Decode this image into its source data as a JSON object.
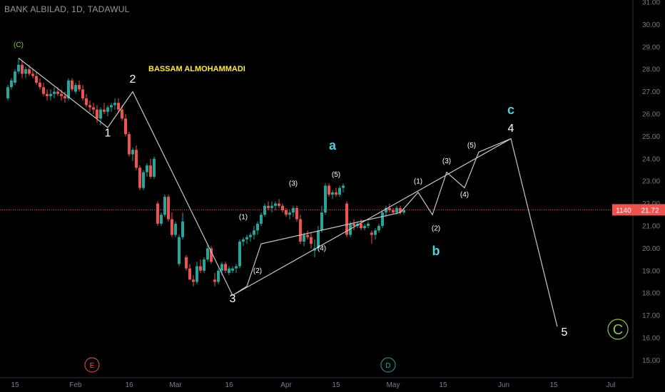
{
  "header": {
    "title": "BANK ALBILAD, 1D, TADAWUL"
  },
  "author": "BASSAM ALMOHAMMADI",
  "colors": {
    "up": "#26a69a",
    "down": "#ef5350",
    "wave_line": "#c7c7c7",
    "teal": "#4dd0e1",
    "green_circle": "#8bc34a",
    "event_e": "#ef5350",
    "event_d": "#26a69a",
    "price_line": "#ef5350"
  },
  "price_tag": {
    "left": "1140",
    "value": "21.72"
  },
  "events": [
    {
      "label": "E"
    },
    {
      "label": "D"
    }
  ],
  "chart_data": {
    "type": "candlestick",
    "title": "BANK ALBILAD, 1D, TADAWUL",
    "ylim": [
      14.6,
      31.0
    ],
    "y_ticks": [
      "15.00",
      "16.00",
      "17.00",
      "18.00",
      "19.00",
      "20.00",
      "21.00",
      "22.00",
      "23.00",
      "24.00",
      "25.00",
      "26.00",
      "27.00",
      "28.00",
      "29.00",
      "30.00",
      "31.00"
    ],
    "x_ticks": [
      {
        "label": "15",
        "day": 0
      },
      {
        "label": "Feb",
        "day": 17
      },
      {
        "label": "16",
        "day": 32
      },
      {
        "label": "Mar",
        "day": 45
      },
      {
        "label": "16",
        "day": 60
      },
      {
        "label": "Apr",
        "day": 76
      },
      {
        "label": "15",
        "day": 90
      },
      {
        "label": "May",
        "day": 106
      },
      {
        "label": "15",
        "day": 120
      },
      {
        "label": "Jun",
        "day": 137
      },
      {
        "label": "15",
        "day": 151
      },
      {
        "label": "Jul",
        "day": 167
      }
    ],
    "current_price": 21.72,
    "candles": [
      [
        -2,
        26.7,
        27.3,
        26.6,
        27.2
      ],
      [
        -1,
        27.2,
        27.6,
        27.1,
        27.5
      ],
      [
        0,
        27.4,
        28.0,
        27.3,
        27.9
      ],
      [
        1,
        27.9,
        28.5,
        27.8,
        28.2
      ],
      [
        2,
        28.2,
        28.4,
        27.6,
        27.8
      ],
      [
        3,
        27.8,
        28.1,
        27.6,
        28.0
      ],
      [
        4,
        28.0,
        28.2,
        27.7,
        27.8
      ],
      [
        5,
        27.8,
        28.0,
        27.6,
        27.7
      ],
      [
        6,
        27.7,
        27.9,
        27.3,
        27.4
      ],
      [
        7,
        27.4,
        27.6,
        27.1,
        27.2
      ],
      [
        8,
        27.2,
        27.4,
        26.8,
        26.9
      ],
      [
        9,
        26.9,
        27.1,
        26.6,
        26.8
      ],
      [
        10,
        26.8,
        27.1,
        26.6,
        26.9
      ],
      [
        11,
        26.9,
        27.2,
        26.7,
        27.0
      ],
      [
        12,
        27.0,
        27.2,
        26.8,
        26.9
      ],
      [
        13,
        26.9,
        27.1,
        26.6,
        26.8
      ],
      [
        14,
        26.8,
        27.0,
        26.5,
        26.7
      ],
      [
        15,
        26.7,
        27.6,
        26.6,
        27.5
      ],
      [
        16,
        27.5,
        27.6,
        27.0,
        27.1
      ],
      [
        17,
        27.0,
        27.4,
        26.9,
        27.3
      ],
      [
        18,
        27.3,
        27.5,
        27.0,
        27.1
      ],
      [
        19,
        27.1,
        27.3,
        26.6,
        26.7
      ],
      [
        20,
        26.7,
        26.9,
        26.3,
        26.4
      ],
      [
        21,
        26.4,
        26.6,
        26.1,
        26.3
      ],
      [
        22,
        26.3,
        26.5,
        26.0,
        26.2
      ],
      [
        23,
        26.2,
        26.4,
        25.6,
        25.8
      ],
      [
        24,
        25.8,
        26.3,
        25.5,
        26.2
      ],
      [
        25,
        26.2,
        26.5,
        26.0,
        26.1
      ],
      [
        26,
        26.1,
        26.4,
        25.9,
        26.3
      ],
      [
        27,
        26.3,
        26.5,
        26.1,
        26.4
      ],
      [
        28,
        26.4,
        26.7,
        26.2,
        26.5
      ],
      [
        29,
        26.5,
        26.7,
        26.1,
        26.2
      ],
      [
        30,
        26.2,
        26.4,
        25.7,
        25.8
      ],
      [
        31,
        25.8,
        26.0,
        25.0,
        25.1
      ],
      [
        32,
        25.1,
        25.2,
        24.1,
        24.2
      ],
      [
        33,
        24.2,
        24.5,
        23.9,
        24.4
      ],
      [
        34,
        24.4,
        24.6,
        23.5,
        23.6
      ],
      [
        35,
        23.6,
        23.7,
        22.6,
        22.7
      ],
      [
        36,
        22.7,
        23.5,
        22.6,
        23.4
      ],
      [
        37,
        23.4,
        23.8,
        23.2,
        23.7
      ],
      [
        38,
        23.7,
        24.0,
        23.1,
        23.2
      ],
      [
        39,
        23.2,
        24.1,
        23.1,
        24.0
      ],
      [
        40,
        22.0,
        22.1,
        21.0,
        21.1
      ],
      [
        41,
        21.1,
        21.6,
        21.0,
        21.5
      ],
      [
        42,
        21.5,
        22.4,
        21.4,
        22.3
      ],
      [
        43,
        22.3,
        22.4,
        21.2,
        21.3
      ],
      [
        44,
        21.3,
        21.6,
        20.5,
        20.6
      ],
      [
        45,
        20.6,
        21.2,
        20.5,
        21.1
      ],
      [
        46,
        19.3,
        20.6,
        19.2,
        20.5
      ],
      [
        47,
        20.5,
        21.6,
        20.4,
        21.2
      ],
      [
        48,
        19.6,
        19.7,
        19.0,
        19.1
      ],
      [
        49,
        19.1,
        19.3,
        18.6,
        18.6
      ],
      [
        50,
        18.6,
        18.8,
        18.3,
        18.5
      ],
      [
        51,
        18.5,
        19.4,
        18.4,
        19.2
      ],
      [
        52,
        19.2,
        19.5,
        18.9,
        19.0
      ],
      [
        53,
        19.0,
        19.6,
        18.9,
        19.5
      ],
      [
        54,
        19.5,
        20.2,
        19.4,
        20.0
      ],
      [
        55,
        20.0,
        20.1,
        19.3,
        19.4
      ],
      [
        56,
        18.6,
        18.9,
        18.3,
        18.5
      ],
      [
        57,
        18.5,
        19.1,
        18.4,
        19.0
      ],
      [
        58,
        19.0,
        19.4,
        18.8,
        19.3
      ],
      [
        59,
        19.3,
        19.4,
        18.9,
        19.0
      ],
      [
        60,
        18.9,
        19.2,
        18.8,
        19.1
      ],
      [
        61,
        19.0,
        19.2,
        18.9,
        19.1
      ],
      [
        62,
        19.1,
        19.3,
        18.9,
        19.2
      ],
      [
        63,
        19.2,
        20.4,
        19.1,
        20.3
      ],
      [
        64,
        20.3,
        20.5,
        20.1,
        20.4
      ],
      [
        65,
        20.4,
        20.6,
        20.2,
        20.5
      ],
      [
        66,
        20.5,
        20.7,
        20.3,
        20.6
      ],
      [
        67,
        20.6,
        21.0,
        20.4,
        20.8
      ],
      [
        68,
        20.8,
        21.2,
        20.6,
        21.1
      ],
      [
        69,
        21.1,
        21.6,
        21.0,
        21.5
      ],
      [
        70,
        21.5,
        22.0,
        21.4,
        21.9
      ],
      [
        71,
        21.9,
        22.1,
        21.7,
        21.8
      ],
      [
        72,
        21.8,
        22.1,
        21.6,
        21.9
      ],
      [
        73,
        21.9,
        22.1,
        21.7,
        22.0
      ],
      [
        74,
        22.0,
        22.2,
        21.8,
        21.9
      ],
      [
        75,
        21.9,
        22.0,
        21.6,
        21.7
      ],
      [
        76,
        21.7,
        21.8,
        21.4,
        21.5
      ],
      [
        77,
        21.5,
        21.7,
        21.3,
        21.6
      ],
      [
        78,
        21.6,
        21.9,
        21.4,
        21.8
      ],
      [
        79,
        21.8,
        21.9,
        21.2,
        21.3
      ],
      [
        80,
        21.3,
        21.5,
        20.2,
        20.3
      ],
      [
        81,
        20.3,
        20.7,
        20.1,
        20.6
      ],
      [
        82,
        20.6,
        20.8,
        20.4,
        20.5
      ],
      [
        83,
        20.5,
        20.7,
        20.0,
        20.2
      ],
      [
        84,
        19.9,
        20.4,
        19.6,
        20.0
      ],
      [
        85,
        20.0,
        21.0,
        19.9,
        20.8
      ],
      [
        86,
        20.8,
        21.9,
        20.7,
        21.6
      ],
      [
        87,
        21.6,
        22.9,
        21.5,
        22.8
      ],
      [
        88,
        22.8,
        22.9,
        22.3,
        22.4
      ],
      [
        89,
        22.4,
        22.6,
        22.2,
        22.5
      ],
      [
        90,
        22.5,
        22.7,
        22.3,
        22.4
      ],
      [
        91,
        22.4,
        22.8,
        22.3,
        22.7
      ],
      [
        92,
        22.7,
        22.9,
        22.5,
        22.8
      ],
      [
        93,
        22.0,
        22.1,
        20.5,
        20.6
      ],
      [
        94,
        20.6,
        21.2,
        20.5,
        21.1
      ],
      [
        95,
        21.1,
        21.3,
        20.8,
        21.0
      ],
      [
        96,
        21.0,
        21.2,
        20.9,
        21.1
      ],
      [
        97,
        21.1,
        21.3,
        20.8,
        20.9
      ],
      [
        98,
        20.9,
        21.1,
        20.8,
        21.0
      ],
      [
        99,
        21.0,
        21.2,
        20.9,
        21.1
      ],
      [
        100,
        20.7,
        20.8,
        20.2,
        20.6
      ],
      [
        101,
        20.6,
        20.9,
        20.4,
        20.8
      ],
      [
        102,
        20.8,
        21.1,
        20.7,
        21.0
      ],
      [
        103,
        21.0,
        21.7,
        20.9,
        21.6
      ],
      [
        104,
        21.6,
        21.9,
        21.4,
        21.8
      ],
      [
        105,
        21.8,
        22.0,
        21.6,
        21.7
      ],
      [
        106,
        21.7,
        21.8,
        21.5,
        21.6
      ],
      [
        107,
        21.6,
        21.9,
        21.5,
        21.8
      ],
      [
        108,
        21.8,
        21.9,
        21.5,
        21.6
      ],
      [
        109,
        21.6,
        21.8,
        21.5,
        21.7
      ]
    ],
    "wave_path": [
      {
        "day": 1,
        "y": 28.5
      },
      {
        "day": 26,
        "y": 25.4
      },
      {
        "day": 33,
        "y": 27.0
      },
      {
        "day": 61,
        "y": 17.9
      },
      {
        "day": 139,
        "y": 24.9
      },
      {
        "day": 152,
        "y": 16.5
      }
    ],
    "wave_path_sub": [
      {
        "day": 61,
        "y": 17.9
      },
      {
        "day": 65,
        "y": 18.3
      },
      {
        "day": 69,
        "y": 20.2
      },
      {
        "day": 108,
        "y": 21.6
      },
      {
        "day": 113,
        "y": 22.5
      },
      {
        "day": 117,
        "y": 21.5
      },
      {
        "day": 121,
        "y": 23.4
      },
      {
        "day": 126,
        "y": 22.7
      },
      {
        "day": 130,
        "y": 24.3
      },
      {
        "day": 139,
        "y": 24.9
      }
    ],
    "wave_labels": [
      {
        "text": "(C)",
        "day": 1,
        "y": 29.0,
        "style": "green-small"
      },
      {
        "text": "2",
        "day": 33,
        "y": 27.4,
        "style": "white-big"
      },
      {
        "text": "1",
        "day": 26,
        "y": 25.0,
        "style": "white-big"
      },
      {
        "text": "3",
        "day": 61,
        "y": 17.6,
        "style": "white-big"
      },
      {
        "text": "4",
        "day": 139,
        "y": 25.2,
        "style": "white-big"
      },
      {
        "text": "5",
        "day": 154,
        "y": 16.1,
        "style": "white-big"
      },
      {
        "text": "a",
        "day": 89,
        "y": 24.4,
        "style": "teal-big"
      },
      {
        "text": "b",
        "day": 118,
        "y": 19.7,
        "style": "teal-big"
      },
      {
        "text": "c",
        "day": 139,
        "y": 26.0,
        "style": "teal-big"
      },
      {
        "text": "(1)",
        "day": 64,
        "y": 21.3,
        "style": "sub"
      },
      {
        "text": "(2)",
        "day": 68,
        "y": 18.9,
        "style": "sub"
      },
      {
        "text": "(3)",
        "day": 78,
        "y": 22.8,
        "style": "sub"
      },
      {
        "text": "(4)",
        "day": 86,
        "y": 19.9,
        "style": "sub"
      },
      {
        "text": "(5)",
        "day": 90,
        "y": 23.2,
        "style": "sub"
      },
      {
        "text": "(1)",
        "day": 113,
        "y": 22.9,
        "style": "sub"
      },
      {
        "text": "(2)",
        "day": 118,
        "y": 20.8,
        "style": "sub"
      },
      {
        "text": "(3)",
        "day": 121,
        "y": 23.8,
        "style": "sub"
      },
      {
        "text": "(4)",
        "day": 126,
        "y": 22.3,
        "style": "sub"
      },
      {
        "text": "(5)",
        "day": 128,
        "y": 24.5,
        "style": "sub"
      }
    ]
  }
}
